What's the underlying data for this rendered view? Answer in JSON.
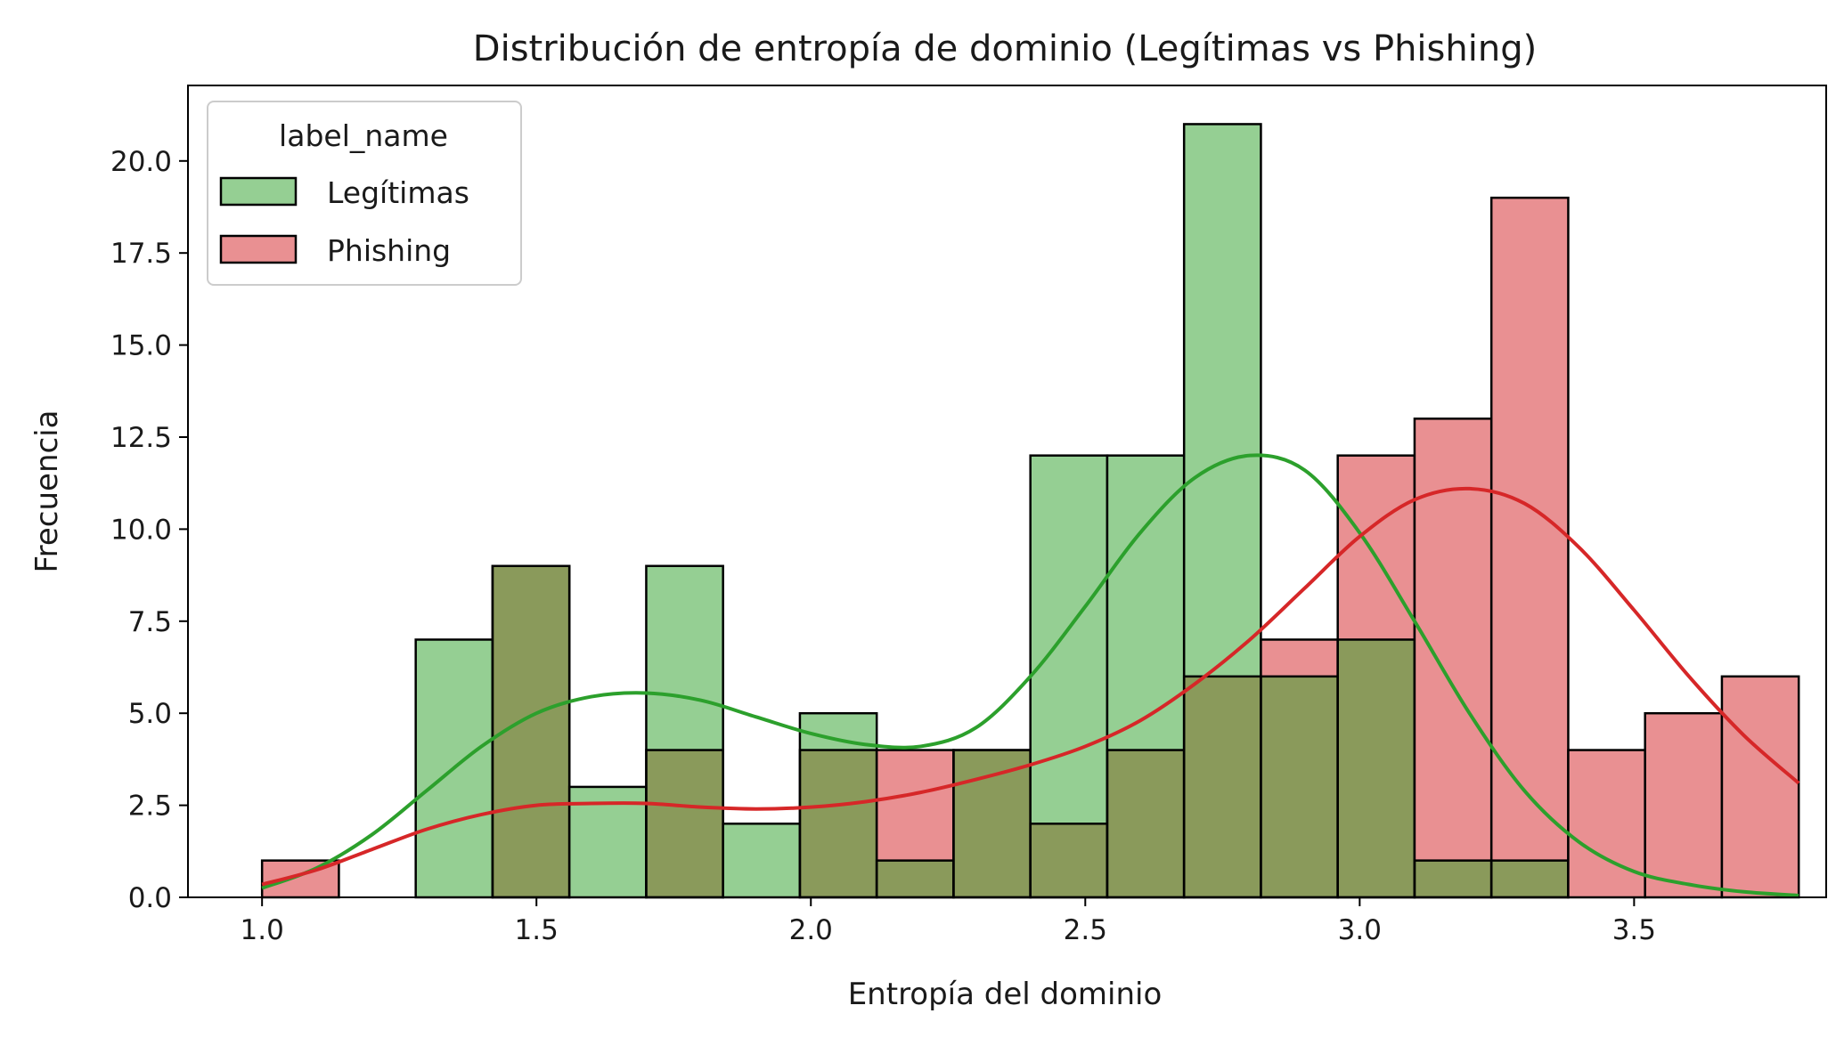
{
  "chart_data": {
    "type": "histogram",
    "title": "Distribución de entropía de dominio (Legítimas vs Phishing)",
    "xlabel": "Entropía del dominio",
    "ylabel": "Frecuencia",
    "xlim": [
      0.865,
      3.85
    ],
    "ylim": [
      0,
      22.05
    ],
    "xticks": [
      1.0,
      1.5,
      2.0,
      2.5,
      3.0,
      3.5
    ],
    "xtick_labels": [
      "1.0",
      "1.5",
      "2.0",
      "2.5",
      "3.0",
      "3.5"
    ],
    "yticks": [
      0,
      2.5,
      5,
      7.5,
      10,
      12.5,
      15,
      17.5,
      20
    ],
    "ytick_labels": [
      "0.0",
      "2.5",
      "5.0",
      "7.5",
      "10.0",
      "12.5",
      "15.0",
      "17.5",
      "20.0"
    ],
    "grid": false,
    "legend": {
      "title": "label_name",
      "placement": "top-left",
      "entries": [
        "Legítimas",
        "Phishing"
      ]
    },
    "bin_edges": [
      1.0,
      1.14,
      1.28,
      1.42,
      1.56,
      1.7,
      1.84,
      1.98,
      2.12,
      2.26,
      2.4,
      2.54,
      2.68,
      2.82,
      2.96,
      3.1,
      3.24,
      3.38,
      3.52,
      3.66,
      3.8
    ],
    "series": [
      {
        "name": "Legítimas",
        "fill": "#95cf93",
        "line": "#2ca02c",
        "counts": [
          0,
          0,
          7,
          9,
          3,
          9,
          2,
          5,
          1,
          4,
          12,
          12,
          21,
          6,
          7,
          1,
          1,
          0,
          0,
          0
        ],
        "kde": {
          "x": [
            1.0,
            1.1,
            1.2,
            1.3,
            1.4,
            1.5,
            1.6,
            1.7,
            1.8,
            1.9,
            2.0,
            2.1,
            2.2,
            2.3,
            2.4,
            2.5,
            2.6,
            2.7,
            2.8,
            2.9,
            3.0,
            3.1,
            3.2,
            3.3,
            3.4,
            3.5,
            3.6,
            3.7,
            3.8
          ],
          "y": [
            0.25,
            0.8,
            1.7,
            2.9,
            4.1,
            5.0,
            5.45,
            5.55,
            5.35,
            4.9,
            4.45,
            4.15,
            4.1,
            4.6,
            6.0,
            7.9,
            9.9,
            11.4,
            12.0,
            11.6,
            9.9,
            7.5,
            5.0,
            2.9,
            1.5,
            0.7,
            0.35,
            0.15,
            0.05
          ]
        }
      },
      {
        "name": "Phishing",
        "fill": "#e99092",
        "line": "#d62728",
        "counts": [
          1,
          0,
          0,
          9,
          0,
          4,
          0,
          4,
          4,
          4,
          2,
          4,
          6,
          7,
          12,
          13,
          19,
          4,
          5,
          6
        ],
        "kde": {
          "x": [
            1.0,
            1.1,
            1.2,
            1.3,
            1.4,
            1.5,
            1.6,
            1.7,
            1.8,
            1.9,
            2.0,
            2.1,
            2.2,
            2.3,
            2.4,
            2.5,
            2.6,
            2.7,
            2.8,
            2.9,
            3.0,
            3.1,
            3.2,
            3.3,
            3.4,
            3.5,
            3.6,
            3.7,
            3.8
          ],
          "y": [
            0.35,
            0.75,
            1.3,
            1.85,
            2.25,
            2.5,
            2.55,
            2.55,
            2.45,
            2.4,
            2.45,
            2.6,
            2.85,
            3.2,
            3.6,
            4.1,
            4.8,
            5.8,
            7.0,
            8.4,
            9.8,
            10.8,
            11.1,
            10.7,
            9.5,
            7.8,
            6.0,
            4.4,
            3.1
          ]
        }
      }
    ],
    "overlap_fill": "#8a9a5b"
  }
}
